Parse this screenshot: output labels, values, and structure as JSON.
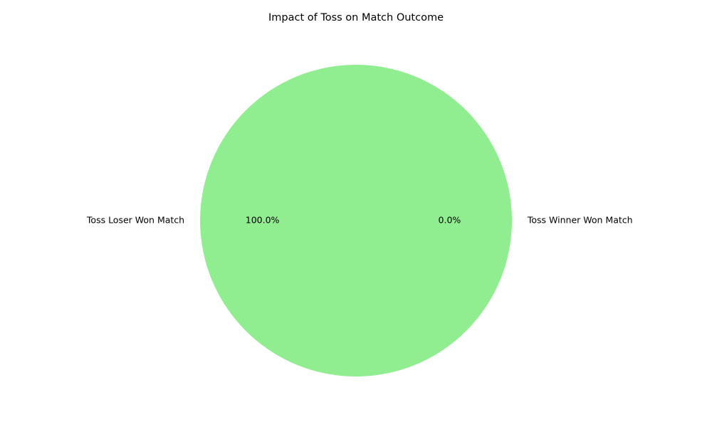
{
  "chart_data": {
    "type": "pie",
    "title": "Impact of Toss on Match Outcome",
    "slices": [
      {
        "label": "Toss Winner Won Match",
        "value": 0.0,
        "pct_label": "0.0%",
        "color": "#ff7f7f"
      },
      {
        "label": "Toss Loser Won Match",
        "value": 100.0,
        "pct_label": "100.0%",
        "color": "#90ee90"
      }
    ],
    "start_angle_deg": 0,
    "direction": "counterclockwise"
  }
}
